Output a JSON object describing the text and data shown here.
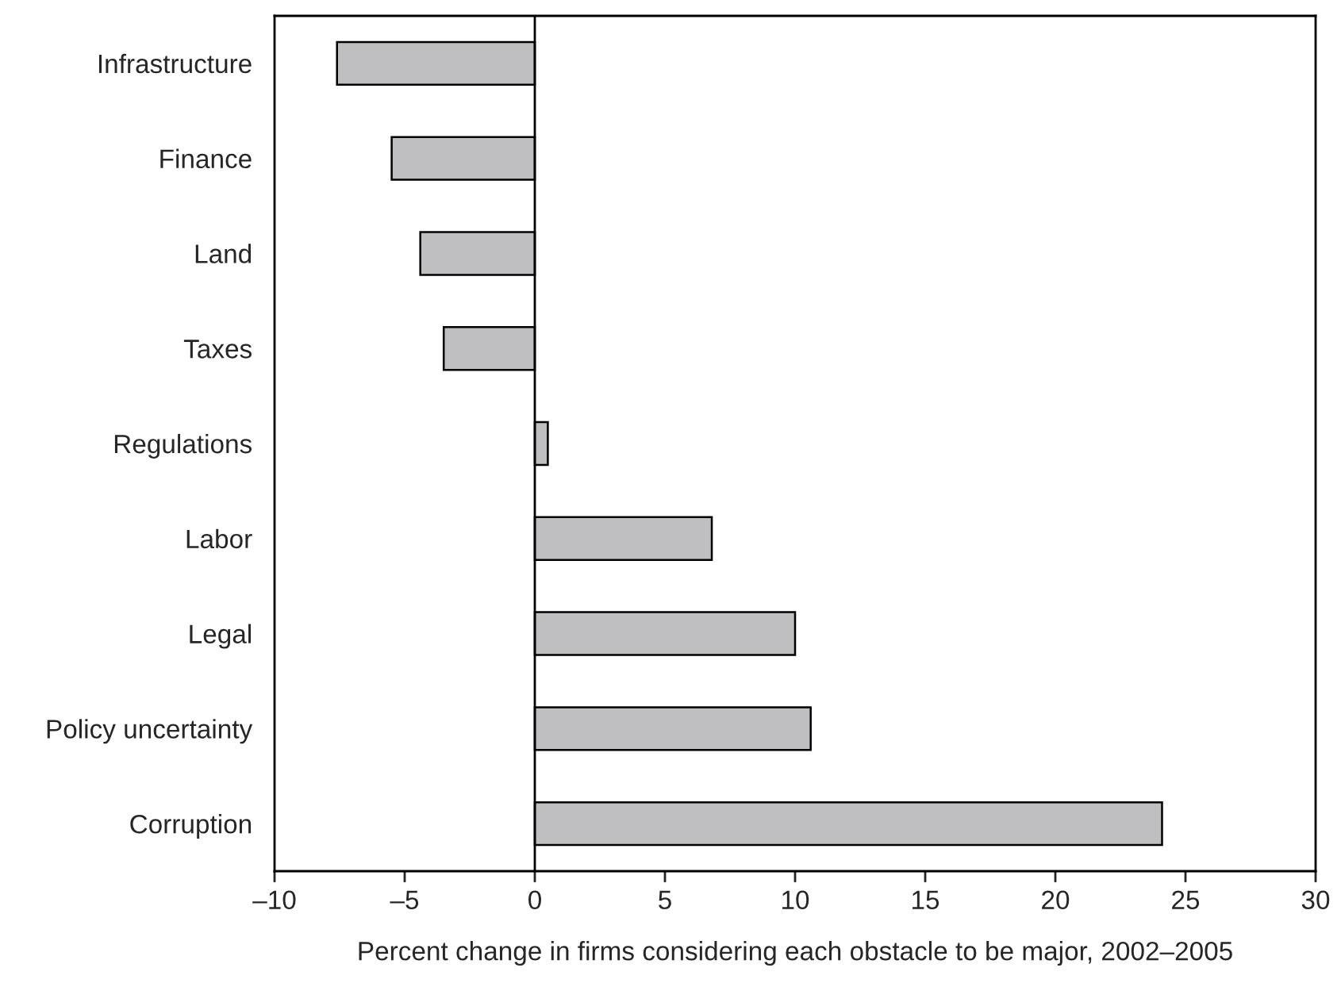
{
  "chart_data": {
    "type": "bar",
    "orientation": "horizontal",
    "categories": [
      "Infrastructure",
      "Finance",
      "Land",
      "Taxes",
      "Regulations",
      "Labor",
      "Legal",
      "Policy uncertainty",
      "Corruption"
    ],
    "values": [
      -7.6,
      -5.5,
      -4.4,
      -3.5,
      0.5,
      6.8,
      10.0,
      10.6,
      24.1
    ],
    "color": "#bfbfc1",
    "xlabel": "Percent change in firms considering each obstacle to be major, 2002–2005",
    "xlim": [
      -10,
      30
    ],
    "xticks": [
      {
        "value": -10,
        "label": "–10"
      },
      {
        "value": -5,
        "label": "–5"
      },
      0,
      5,
      10,
      15,
      20,
      25,
      30
    ],
    "ref_lines": [
      {
        "axis": "x",
        "value": 0,
        "color": "#000000"
      }
    ],
    "grid": false,
    "legend": false
  }
}
